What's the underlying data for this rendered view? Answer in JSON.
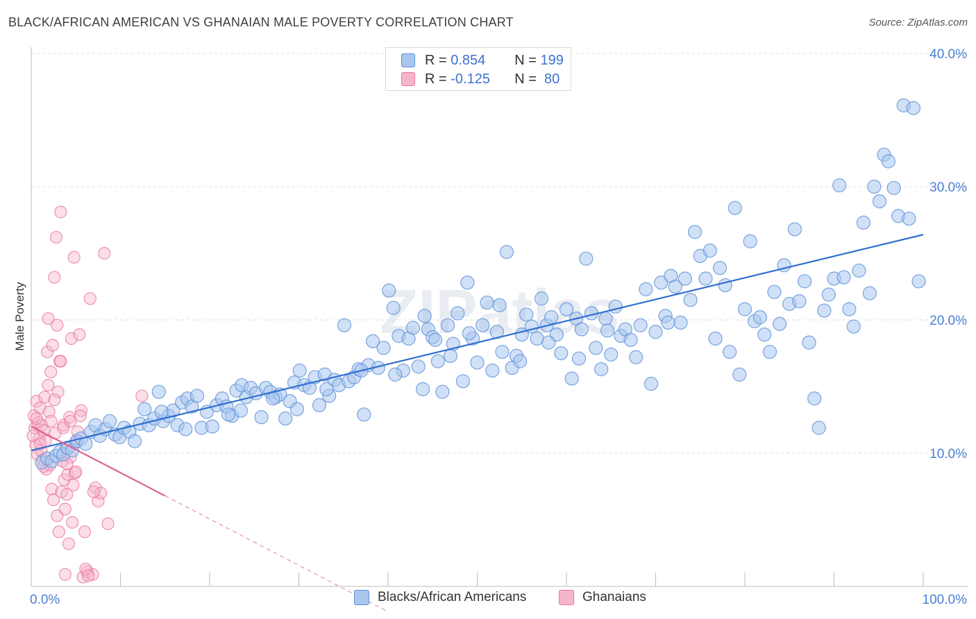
{
  "title": "BLACK/AFRICAN AMERICAN VS GHANAIAN MALE POVERTY CORRELATION CHART",
  "source": "Source: ZipAtlas.com",
  "watermark": "ZIPatlas",
  "legend": {
    "rows": [
      {
        "r_label": "R = ",
        "r_value": "0.854",
        "n_label": "N = ",
        "n_value": "199"
      },
      {
        "r_label": "R = ",
        "r_value": "-0.125",
        "n_label": "N = ",
        "n_value": " 80"
      }
    ]
  },
  "colors": {
    "blue_fill": "#a9c7ee",
    "blue_stroke": "#5b8fd8",
    "blue_line": "#2f6fd0",
    "pink_fill": "#f6b6c9",
    "pink_stroke": "#e8739a",
    "pink_line": "#e0608f",
    "tick_text": "#4a7fd4",
    "grid": "#dddddd"
  },
  "chart_data": {
    "type": "scatter",
    "title": "BLACK/AFRICAN AMERICAN VS GHANAIAN MALE POVERTY CORRELATION CHART",
    "xlabel": "",
    "ylabel": "Male Poverty",
    "xlim": [
      0,
      100
    ],
    "ylim": [
      0,
      40
    ],
    "x_tick_labels": [
      "0.0%",
      "100.0%"
    ],
    "y_ticks": [
      10,
      20,
      30,
      40
    ],
    "y_tick_labels": [
      "10.0%",
      "20.0%",
      "30.0%",
      "40.0%"
    ],
    "grid": true,
    "legend_position": "top-center",
    "series": [
      {
        "name": "Blacks/African Americans",
        "r": 0.854,
        "n": 199,
        "trend": {
          "x": [
            0,
            100
          ],
          "y": [
            10.2,
            26.4
          ]
        },
        "points": [
          [
            1.2,
            9.3
          ],
          [
            1.8,
            9.6
          ],
          [
            2.3,
            9.4
          ],
          [
            2.8,
            9.8
          ],
          [
            3.2,
            10.1
          ],
          [
            3.6,
            9.9
          ],
          [
            4.1,
            10.4
          ],
          [
            4.6,
            10.2
          ],
          [
            5.1,
            10.9
          ],
          [
            5.6,
            11.1
          ],
          [
            6.1,
            10.7
          ],
          [
            6.7,
            11.6
          ],
          [
            7.2,
            12.1
          ],
          [
            7.7,
            11.3
          ],
          [
            8.3,
            11.8
          ],
          [
            8.8,
            12.4
          ],
          [
            9.4,
            11.4
          ],
          [
            9.9,
            11.2
          ],
          [
            10.4,
            11.9
          ],
          [
            11.0,
            11.6
          ],
          [
            11.6,
            10.9
          ],
          [
            12.2,
            12.2
          ],
          [
            12.7,
            13.3
          ],
          [
            13.2,
            12.1
          ],
          [
            13.8,
            12.6
          ],
          [
            14.3,
            14.6
          ],
          [
            14.8,
            12.4
          ],
          [
            15.4,
            12.8
          ],
          [
            15.9,
            13.2
          ],
          [
            16.4,
            12.1
          ],
          [
            16.9,
            13.8
          ],
          [
            17.5,
            14.1
          ],
          [
            18.0,
            13.5
          ],
          [
            18.6,
            14.3
          ],
          [
            19.1,
            11.9
          ],
          [
            19.7,
            13.1
          ],
          [
            20.3,
            12.0
          ],
          [
            20.8,
            13.6
          ],
          [
            21.4,
            14.1
          ],
          [
            21.9,
            13.5
          ],
          [
            22.5,
            12.8
          ],
          [
            23.0,
            14.7
          ],
          [
            23.6,
            15.1
          ],
          [
            24.1,
            14.2
          ],
          [
            24.6,
            14.9
          ],
          [
            25.2,
            14.5
          ],
          [
            25.8,
            12.7
          ],
          [
            26.3,
            14.9
          ],
          [
            26.8,
            14.6
          ],
          [
            27.4,
            14.2
          ],
          [
            27.9,
            14.4
          ],
          [
            28.5,
            12.6
          ],
          [
            29.0,
            13.9
          ],
          [
            29.5,
            15.3
          ],
          [
            30.1,
            16.2
          ],
          [
            30.6,
            15.1
          ],
          [
            31.2,
            14.9
          ],
          [
            31.8,
            15.7
          ],
          [
            32.3,
            13.6
          ],
          [
            32.9,
            15.9
          ],
          [
            33.4,
            14.3
          ],
          [
            34.0,
            15.5
          ],
          [
            34.5,
            15.1
          ],
          [
            35.1,
            19.6
          ],
          [
            35.6,
            15.4
          ],
          [
            36.2,
            15.7
          ],
          [
            36.7,
            16.3
          ],
          [
            37.3,
            12.9
          ],
          [
            37.8,
            16.6
          ],
          [
            38.3,
            18.4
          ],
          [
            38.9,
            16.4
          ],
          [
            39.5,
            17.9
          ],
          [
            40.1,
            22.2
          ],
          [
            40.6,
            20.9
          ],
          [
            41.2,
            18.8
          ],
          [
            41.7,
            16.2
          ],
          [
            42.3,
            18.6
          ],
          [
            42.8,
            19.4
          ],
          [
            43.4,
            16.5
          ],
          [
            43.9,
            14.8
          ],
          [
            44.5,
            19.3
          ],
          [
            45.0,
            18.7
          ],
          [
            45.6,
            16.9
          ],
          [
            46.1,
            14.6
          ],
          [
            46.7,
            19.6
          ],
          [
            47.3,
            18.2
          ],
          [
            47.8,
            20.5
          ],
          [
            48.4,
            15.4
          ],
          [
            48.9,
            22.8
          ],
          [
            49.5,
            18.6
          ],
          [
            50.0,
            16.8
          ],
          [
            50.6,
            19.6
          ],
          [
            51.1,
            21.3
          ],
          [
            51.7,
            16.2
          ],
          [
            52.2,
            19.1
          ],
          [
            52.8,
            17.6
          ],
          [
            53.3,
            25.1
          ],
          [
            53.9,
            16.4
          ],
          [
            54.4,
            17.3
          ],
          [
            55.0,
            18.9
          ],
          [
            55.5,
            20.4
          ],
          [
            56.1,
            19.5
          ],
          [
            56.7,
            18.6
          ],
          [
            57.2,
            21.6
          ],
          [
            57.8,
            19.6
          ],
          [
            58.3,
            20.2
          ],
          [
            58.9,
            18.9
          ],
          [
            59.4,
            17.5
          ],
          [
            60.0,
            20.8
          ],
          [
            60.6,
            15.6
          ],
          [
            61.1,
            20.1
          ],
          [
            61.7,
            19.3
          ],
          [
            62.2,
            24.6
          ],
          [
            62.8,
            20.5
          ],
          [
            63.3,
            17.9
          ],
          [
            63.9,
            16.3
          ],
          [
            64.4,
            20.1
          ],
          [
            65.0,
            17.4
          ],
          [
            65.5,
            21.0
          ],
          [
            66.1,
            18.8
          ],
          [
            66.6,
            19.3
          ],
          [
            67.2,
            18.5
          ],
          [
            67.8,
            17.2
          ],
          [
            68.3,
            19.6
          ],
          [
            68.9,
            22.3
          ],
          [
            69.5,
            15.2
          ],
          [
            70.0,
            19.1
          ],
          [
            70.6,
            22.8
          ],
          [
            71.1,
            20.3
          ],
          [
            71.7,
            23.3
          ],
          [
            72.2,
            22.5
          ],
          [
            72.8,
            19.8
          ],
          [
            73.3,
            23.1
          ],
          [
            73.9,
            21.5
          ],
          [
            74.4,
            26.6
          ],
          [
            75.0,
            24.8
          ],
          [
            75.6,
            23.1
          ],
          [
            76.1,
            25.2
          ],
          [
            76.7,
            18.6
          ],
          [
            77.2,
            23.9
          ],
          [
            77.8,
            22.6
          ],
          [
            78.3,
            17.6
          ],
          [
            78.9,
            28.4
          ],
          [
            79.4,
            15.9
          ],
          [
            80.0,
            20.8
          ],
          [
            80.6,
            25.9
          ],
          [
            81.1,
            19.9
          ],
          [
            81.7,
            20.2
          ],
          [
            82.2,
            18.9
          ],
          [
            82.8,
            17.6
          ],
          [
            83.3,
            22.1
          ],
          [
            83.9,
            19.7
          ],
          [
            84.4,
            24.1
          ],
          [
            85.0,
            21.2
          ],
          [
            85.6,
            26.8
          ],
          [
            86.1,
            21.4
          ],
          [
            86.7,
            22.9
          ],
          [
            87.2,
            18.3
          ],
          [
            87.8,
            14.1
          ],
          [
            88.3,
            11.9
          ],
          [
            88.9,
            20.7
          ],
          [
            89.4,
            21.9
          ],
          [
            90.0,
            23.1
          ],
          [
            90.6,
            30.1
          ],
          [
            91.1,
            23.2
          ],
          [
            91.7,
            20.8
          ],
          [
            92.2,
            19.5
          ],
          [
            92.8,
            23.7
          ],
          [
            93.3,
            27.3
          ],
          [
            94.0,
            22.0
          ],
          [
            94.5,
            30.0
          ],
          [
            95.1,
            28.9
          ],
          [
            95.6,
            32.4
          ],
          [
            96.1,
            31.9
          ],
          [
            96.7,
            29.9
          ],
          [
            97.2,
            27.8
          ],
          [
            97.8,
            36.1
          ],
          [
            98.4,
            27.6
          ],
          [
            98.9,
            35.9
          ],
          [
            99.5,
            22.9
          ],
          [
            14.6,
            13.1
          ],
          [
            17.3,
            11.8
          ],
          [
            22.1,
            12.9
          ],
          [
            23.5,
            13.2
          ],
          [
            27.1,
            14.1
          ],
          [
            29.8,
            13.3
          ],
          [
            33.1,
            14.8
          ],
          [
            37.0,
            16.2
          ],
          [
            40.8,
            15.9
          ],
          [
            44.1,
            20.3
          ],
          [
            45.3,
            18.5
          ],
          [
            47.0,
            17.3
          ],
          [
            49.1,
            19.0
          ],
          [
            52.5,
            21.1
          ],
          [
            54.8,
            16.9
          ],
          [
            58.0,
            18.3
          ],
          [
            61.4,
            17.1
          ],
          [
            64.6,
            19.2
          ],
          [
            71.4,
            19.8
          ]
        ]
      },
      {
        "name": "Ghanaians",
        "r": -0.125,
        "n": 80,
        "trend": {
          "x": [
            0,
            15
          ],
          "y": [
            12.0,
            6.8
          ]
        },
        "trend_extrapolated": {
          "x": [
            15,
            40
          ],
          "y": [
            6.8,
            -1.9
          ]
        },
        "points": [
          [
            0.3,
            12.8
          ],
          [
            0.4,
            11.9
          ],
          [
            0.5,
            10.6
          ],
          [
            0.6,
            13.9
          ],
          [
            0.7,
            9.9
          ],
          [
            0.8,
            12.3
          ],
          [
            0.9,
            11.1
          ],
          [
            1.0,
            13.4
          ],
          [
            1.1,
            10.2
          ],
          [
            1.2,
            12.1
          ],
          [
            1.3,
            9.5
          ],
          [
            1.4,
            11.7
          ],
          [
            1.5,
            14.2
          ],
          [
            1.6,
            10.9
          ],
          [
            1.7,
            8.8
          ],
          [
            1.8,
            17.6
          ],
          [
            1.9,
            15.1
          ],
          [
            2.0,
            13.1
          ],
          [
            2.1,
            9.1
          ],
          [
            2.2,
            12.4
          ],
          [
            2.3,
            7.3
          ],
          [
            2.4,
            18.1
          ],
          [
            2.5,
            6.5
          ],
          [
            2.6,
            23.2
          ],
          [
            2.7,
            11.5
          ],
          [
            2.8,
            26.2
          ],
          [
            2.9,
            5.3
          ],
          [
            3.0,
            14.6
          ],
          [
            3.1,
            4.1
          ],
          [
            3.2,
            16.9
          ],
          [
            3.3,
            28.1
          ],
          [
            3.4,
            7.1
          ],
          [
            3.5,
            9.4
          ],
          [
            3.6,
            12.1
          ],
          [
            3.7,
            8.0
          ],
          [
            3.8,
            5.8
          ],
          [
            3.9,
            10.4
          ],
          [
            4.0,
            6.9
          ],
          [
            4.1,
            8.4
          ],
          [
            4.2,
            3.2
          ],
          [
            4.3,
            12.7
          ],
          [
            4.4,
            9.7
          ],
          [
            4.5,
            18.6
          ],
          [
            4.6,
            4.8
          ],
          [
            4.7,
            7.6
          ],
          [
            4.8,
            24.7
          ],
          [
            4.9,
            8.5
          ],
          [
            5.0,
            10.8
          ],
          [
            5.2,
            11.6
          ],
          [
            5.4,
            18.9
          ],
          [
            5.6,
            13.2
          ],
          [
            5.8,
            0.7
          ],
          [
            6.0,
            4.1
          ],
          [
            6.3,
            1.1
          ],
          [
            6.6,
            21.6
          ],
          [
            6.9,
            0.9
          ],
          [
            7.2,
            7.4
          ],
          [
            7.5,
            6.4
          ],
          [
            7.8,
            7.0
          ],
          [
            8.2,
            25.0
          ],
          [
            8.6,
            4.7
          ],
          [
            0.2,
            11.3
          ],
          [
            0.6,
            12.6
          ],
          [
            1.0,
            10.7
          ],
          [
            1.4,
            9.0
          ],
          [
            1.9,
            20.1
          ],
          [
            2.2,
            16.1
          ],
          [
            2.6,
            14.0
          ],
          [
            2.9,
            19.6
          ],
          [
            3.3,
            16.9
          ],
          [
            3.6,
            11.9
          ],
          [
            4.0,
            9.2
          ],
          [
            4.4,
            12.4
          ],
          [
            5.0,
            8.6
          ],
          [
            5.5,
            12.8
          ],
          [
            6.1,
            1.3
          ],
          [
            6.4,
            0.8
          ],
          [
            3.8,
            0.9
          ],
          [
            7.0,
            7.1
          ],
          [
            12.4,
            14.3
          ]
        ]
      }
    ]
  },
  "series_legend": [
    {
      "label": "Blacks/African Americans"
    },
    {
      "label": "Ghanaians"
    }
  ]
}
